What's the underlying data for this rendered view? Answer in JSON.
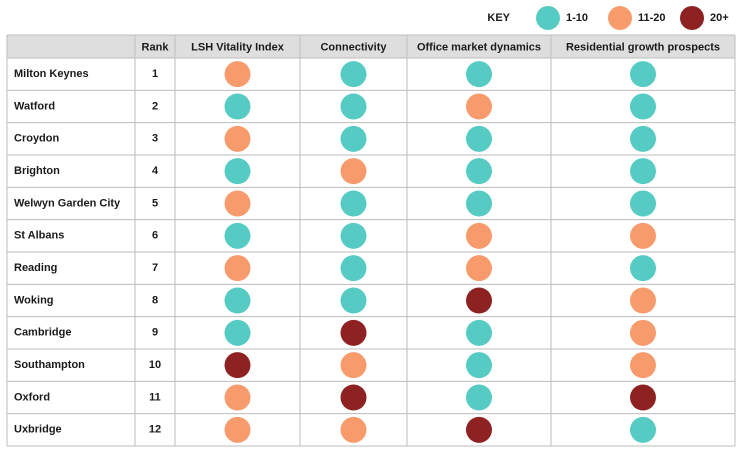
{
  "key": {
    "title": "KEY",
    "items": [
      {
        "label": "1-10",
        "color": "#55cbc3"
      },
      {
        "label": "11-20",
        "color": "#f79b6c"
      },
      {
        "label": "20+",
        "color": "#8e2222"
      }
    ]
  },
  "table": {
    "columns": [
      "Rank",
      "LSH Vitality Index",
      "Connectivity",
      "Office market dynamics",
      "Residential growth prospects"
    ],
    "rows": [
      [
        "Milton Keynes",
        1,
        "11-20",
        "1-10",
        "1-10",
        "1-10"
      ],
      [
        "Watford",
        2,
        "1-10",
        "1-10",
        "11-20",
        "1-10"
      ],
      [
        "Croydon",
        3,
        "11-20",
        "1-10",
        "1-10",
        "1-10"
      ],
      [
        "Brighton",
        4,
        "1-10",
        "11-20",
        "1-10",
        "1-10"
      ],
      [
        "Welwyn Garden City",
        5,
        "11-20",
        "1-10",
        "1-10",
        "1-10"
      ],
      [
        "St Albans",
        6,
        "1-10",
        "1-10",
        "11-20",
        "11-20"
      ],
      [
        "Reading",
        7,
        "11-20",
        "1-10",
        "11-20",
        "1-10"
      ],
      [
        "Woking",
        8,
        "1-10",
        "1-10",
        "20+",
        "11-20"
      ],
      [
        "Cambridge",
        9,
        "1-10",
        "20+",
        "1-10",
        "11-20"
      ],
      [
        "Southampton",
        10,
        "20+",
        "11-20",
        "1-10",
        "11-20"
      ],
      [
        "Oxford",
        11,
        "11-20",
        "20+",
        "1-10",
        "20+"
      ],
      [
        "Uxbridge",
        12,
        "11-20",
        "11-20",
        "20+",
        "1-10"
      ]
    ]
  }
}
